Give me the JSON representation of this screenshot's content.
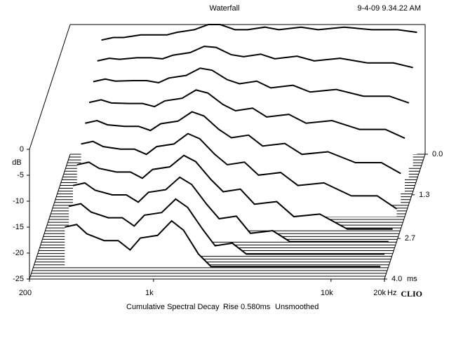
{
  "chart_data": {
    "type": "waterfall",
    "title": "Waterfall",
    "timestamp": "9-4-09 9.34.22 AM",
    "ylabel": "dB",
    "ylim": [
      -25,
      0
    ],
    "yticks": [
      0,
      -5,
      -10,
      -15,
      -20,
      -25
    ],
    "xscale": "log",
    "xlim": [
      200,
      20000
    ],
    "xticks": [
      {
        "value": 200,
        "label": "200"
      },
      {
        "value": 1000,
        "label": "1k"
      },
      {
        "value": 10000,
        "label": "10k"
      },
      {
        "value": 20000,
        "label": "20k"
      }
    ],
    "xunit": "Hz",
    "zlim": [
      0,
      4
    ],
    "zticks": [
      {
        "value": 0,
        "label": "0.0"
      },
      1.3,
      2.7,
      {
        "value": 4,
        "label": "4.0"
      }
    ],
    "zunit": "ms",
    "caption": [
      "Cumulative Spectral Decay",
      "Rise 0.580ms",
      "Unsmoothed"
    ],
    "brand": "CLIO",
    "color": "#000000",
    "x": [
      300,
      350,
      400,
      500,
      600,
      700,
      800,
      1000,
      1200,
      1400,
      1700,
      2000,
      2500,
      3000,
      4000,
      5000,
      7000,
      10000,
      14000,
      18000
    ],
    "slices": [
      {
        "t": 0,
        "values": [
          -3,
          -2.5,
          -2.5,
          -2,
          -2,
          -2,
          -1.5,
          -1,
          0,
          0,
          -1,
          -1,
          -0.5,
          -1,
          -0.5,
          -1,
          -0.5,
          -1,
          -1,
          -1.5
        ]
      },
      {
        "t": 0.4,
        "values": [
          -4.6,
          -4.1,
          -4.3,
          -4,
          -4,
          -4.2,
          -3.5,
          -3,
          -1.8,
          -2,
          -3.4,
          -3.8,
          -3.3,
          -4.2,
          -3.7,
          -4.6,
          -4.1,
          -5,
          -5,
          -5.9
        ]
      },
      {
        "t": 0.8,
        "values": [
          -6.2,
          -5.7,
          -6.1,
          -6,
          -6,
          -6.4,
          -5.5,
          -5,
          -3.6,
          -4,
          -5.8,
          -6.6,
          -6.1,
          -7.4,
          -6.9,
          -8.2,
          -7.7,
          -9,
          -9,
          -10.3
        ]
      },
      {
        "t": 1.2,
        "values": [
          -7.8,
          -7.3,
          -7.9,
          -8,
          -8,
          -8.6,
          -7.5,
          -7,
          -5.4,
          -6,
          -8.2,
          -9.4,
          -8.9,
          -10.6,
          -10.1,
          -11.8,
          -11.3,
          -13,
          -13,
          -14.7
        ]
      },
      {
        "t": 1.6,
        "values": [
          -9.4,
          -8.9,
          -9.7,
          -10,
          -10,
          -10.8,
          -9.5,
          -9,
          -7.2,
          -8,
          -10.6,
          -12.2,
          -11.7,
          -13.8,
          -13.3,
          -15.4,
          -14.9,
          -17,
          -17,
          -19.1
        ]
      },
      {
        "t": 2.0,
        "values": [
          -11,
          -10.5,
          -11.5,
          -12,
          -12,
          -13,
          -11.5,
          -11,
          -9,
          -10,
          -13,
          -15,
          -14.5,
          -17,
          -16.5,
          -19,
          -18.5,
          -21,
          -21,
          -23.5
        ]
      },
      {
        "t": 2.4,
        "values": [
          -12.6,
          -12.1,
          -13.3,
          -14,
          -14,
          -15.2,
          -13.5,
          -13,
          -10.8,
          -12,
          -15.4,
          -17.8,
          -17.3,
          -20.2,
          -19.7,
          -22.6,
          -22.1,
          -25,
          -25,
          -25
        ]
      },
      {
        "t": 2.8,
        "values": [
          -14.2,
          -13.7,
          -15.1,
          -16,
          -16,
          -17.4,
          -15.5,
          -15,
          -12.6,
          -14,
          -17.8,
          -20.6,
          -20.1,
          -23.4,
          -22.9,
          -25,
          -25,
          -25,
          -25,
          -25
        ]
      },
      {
        "t": 3.2,
        "values": [
          -15.8,
          -15.3,
          -16.9,
          -18,
          -18,
          -19.6,
          -17.5,
          -17,
          -14.4,
          -16,
          -20.2,
          -23.4,
          -22.9,
          -25,
          -25,
          -25,
          -25,
          -25,
          -25,
          -25
        ]
      },
      {
        "t": 3.6,
        "values": [
          -17.4,
          -16.9,
          -18.7,
          -20,
          -20,
          -21.8,
          -19.5,
          -19,
          -16.2,
          -18,
          -22.6,
          -25,
          -25,
          -25,
          -25,
          -25,
          -25,
          -25,
          -25,
          -25
        ]
      }
    ]
  }
}
